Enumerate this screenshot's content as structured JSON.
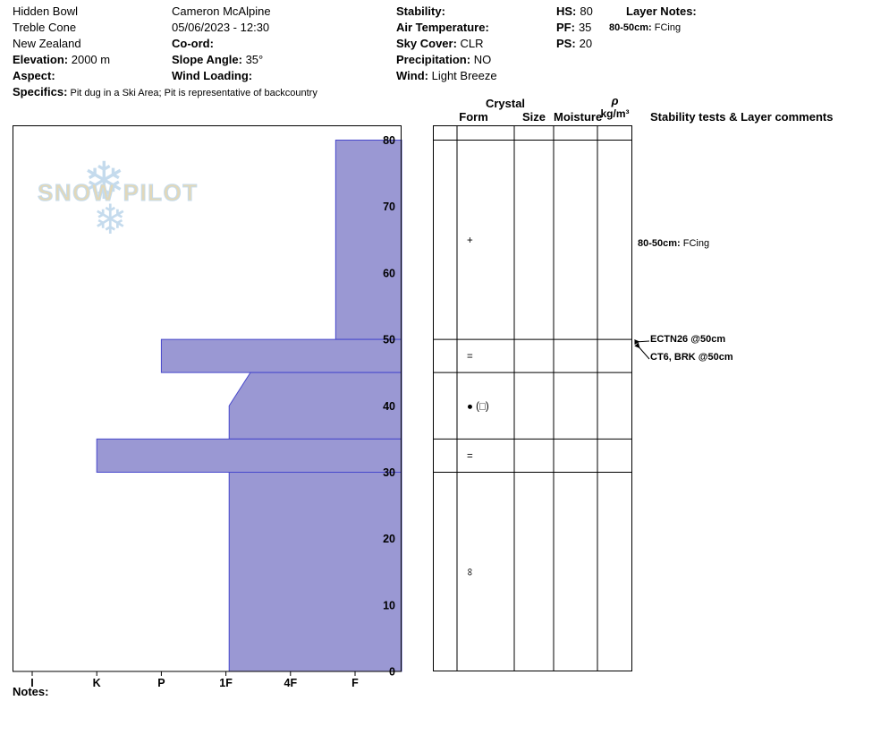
{
  "header": {
    "col1": {
      "location": "Hidden Bowl",
      "area": "Treble Cone",
      "country": "New Zealand",
      "elevation_label": "Elevation:",
      "elevation_value": " 2000 m",
      "aspect_label": "Aspect:",
      "aspect_value": "",
      "specifics_label": "Specifics:",
      "specifics_value": " Pit dug in a Ski Area; Pit is representative of backcountry"
    },
    "col2": {
      "observer": "Cameron McAlpine",
      "datetime": "05/06/2023 - 12:30",
      "coord_label": "Co-ord:",
      "coord_value": "",
      "slope_angle_label": "Slope Angle:",
      "slope_angle_value": " 35°",
      "wind_loading_label": "Wind Loading:",
      "wind_loading_value": ""
    },
    "col3": {
      "stability_label": "Stability:",
      "stability_value": "",
      "air_temp_label": "Air Temperature:",
      "air_temp_value": "",
      "sky_label": "Sky Cover:",
      "sky_value": " CLR",
      "precip_label": "Precipitation:",
      "precip_value": " NO",
      "wind_label": "Wind:",
      "wind_value": " Light Breeze"
    },
    "col4": {
      "hs_label": "HS:",
      "hs_value": "80",
      "pf_label": "PF:",
      "pf_value": "35",
      "ps_label": "PS:",
      "ps_value": "20"
    },
    "col5": {
      "layer_notes_label": "Layer Notes:",
      "note_label": "80-50cm:",
      "note_value": " FCing"
    }
  },
  "columns": {
    "crystal": "Crystal",
    "form": "Form",
    "size": "Size",
    "moisture": "Moisture",
    "rho": "ρ",
    "rho_unit": "kg/m³",
    "comments": "Stability tests & Layer comments"
  },
  "annotations": {
    "layer_note_label": "80-50cm:",
    "layer_note_value": " FCing",
    "test1": "ECTN26 @50cm",
    "test2": "CT6, BRK @50cm"
  },
  "watermark": {
    "text": "SNOW PILOT"
  },
  "notes_label": "Notes:",
  "chart_data": {
    "type": "bar",
    "subtype": "snow-profile-hardness",
    "title": "Snow pit hardness profile",
    "depth_unit": "cm",
    "depth_ticks": [
      0,
      10,
      20,
      30,
      40,
      50,
      60,
      70,
      80
    ],
    "depth_range": [
      0,
      80
    ],
    "hardness_ticks": [
      "I",
      "K",
      "P",
      "1F",
      "4F",
      "F"
    ],
    "total_depth_hs": 80,
    "layers": [
      {
        "from": 80,
        "to": 50,
        "hardness": "F",
        "h_top": 4.7,
        "h_bottom": 4.7,
        "symbol": "+"
      },
      {
        "from": 50,
        "to": 45,
        "hardness": "P",
        "h_top": 2.0,
        "h_bottom": 2.0,
        "symbol": "="
      },
      {
        "from": 45,
        "to": 35,
        "hardness": "4F/1F",
        "h_top": 3.38,
        "h_bottom": 3.05,
        "slant_end": 40,
        "symbol": "● (□)"
      },
      {
        "from": 35,
        "to": 30,
        "hardness": "K",
        "h_top": 1.0,
        "h_bottom": 1.0,
        "symbol": "="
      },
      {
        "from": 30,
        "to": 0,
        "hardness": "1F",
        "h_top": 3.05,
        "h_bottom": 3.05,
        "symbol": "∞",
        "symbol_rotate": 90
      }
    ],
    "stability_tests": [
      "ECTN26 @50cm",
      "CT6, BRK @50cm"
    ],
    "layer_comments": [
      {
        "depth": "80-50cm:",
        "text": "FCing"
      }
    ],
    "colors": {
      "bar_fill": "#9a98d3",
      "bar_stroke": "#4747cc",
      "grid": "#000000"
    }
  }
}
